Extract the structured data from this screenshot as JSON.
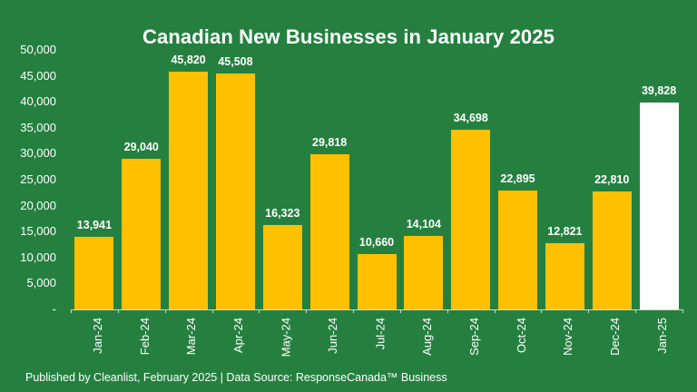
{
  "chart_data": {
    "type": "bar",
    "title": "Canadian New Businesses in January 2025",
    "categories": [
      "Jan-24",
      "Feb-24",
      "Mar-24",
      "Apr-24",
      "May-24",
      "Jun-24",
      "Jul-24",
      "Aug-24",
      "Sep-24",
      "Oct-24",
      "Nov-24",
      "Dec-24",
      "Jan-25"
    ],
    "values": [
      13941,
      29040,
      45820,
      45508,
      16323,
      29818,
      10660,
      14104,
      34698,
      22895,
      12821,
      22810,
      39828
    ],
    "value_labels": [
      "13,941",
      "29,040",
      "45,820",
      "45,508",
      "16,323",
      "29,818",
      "10,660",
      "14,104",
      "34,698",
      "22,895",
      "12,821",
      "22,810",
      "39,828"
    ],
    "xlabel": "",
    "ylabel": "",
    "ylim": [
      0,
      50000
    ],
    "yticks": [
      0,
      5000,
      10000,
      15000,
      20000,
      25000,
      30000,
      35000,
      40000,
      45000,
      50000
    ],
    "ytick_labels": [
      "-",
      "5,000",
      "10,000",
      "15,000",
      "20,000",
      "25,000",
      "30,000",
      "35,000",
      "40,000",
      "45,000",
      "50,000"
    ],
    "grid": false,
    "legend": null,
    "colors": {
      "bar": "#ffc000",
      "highlight_bar": "#ffffff",
      "background": "#25803f"
    },
    "highlight_index": 12
  },
  "title": "Canadian New Businesses in January 2025",
  "footer": "Published by Cleanlist, February 2025 | Data Source: ResponseCanada™ Business"
}
